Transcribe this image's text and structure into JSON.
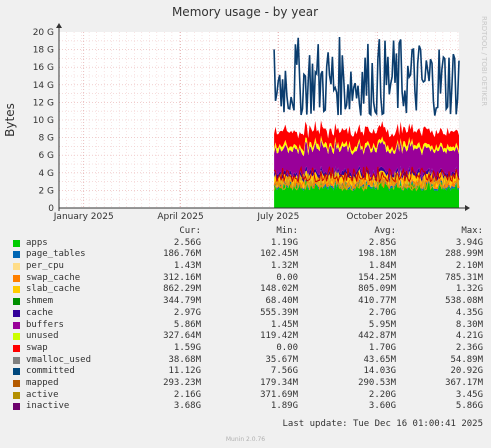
{
  "chart_data": {
    "type": "area",
    "title": "Memory usage - by year",
    "ylabel": "Bytes",
    "watermark": "RRDTOOL / TOBI OETIKER",
    "y_ticks": [
      "0",
      "2 G",
      "4 G",
      "6 G",
      "8 G",
      "10 G",
      "12 G",
      "14 G",
      "16 G",
      "18 G",
      "20 G"
    ],
    "ylim": [
      0,
      20
    ],
    "y_unit": "G",
    "x_ticks": [
      "January 2025",
      "April 2025",
      "July 2025",
      "October 2025"
    ],
    "x_tick_dates": [
      "2025-01-01",
      "2025-04-01",
      "2025-07-01",
      "2025-10-01"
    ],
    "x_range": [
      "2024-12-09",
      "2025-12-16"
    ],
    "data_start": "2025-06-27",
    "columns": [
      "Cur:",
      "Min:",
      "Avg:",
      "Max:"
    ],
    "series": [
      {
        "name": "apps",
        "color": "#00cc00",
        "cur": "2.56G",
        "min": "1.19G",
        "avg": "2.85G",
        "max": "3.94G",
        "stack_band": [
          1.9,
          3.1
        ]
      },
      {
        "name": "page_tables",
        "color": "#0066b3",
        "cur": "186.76M",
        "min": "102.45M",
        "avg": "198.18M",
        "max": "288.99M",
        "stack_band": [
          0.15,
          0.25
        ]
      },
      {
        "name": "per_cpu",
        "color": "#ffcc00",
        "cur": "1.43M",
        "min": "1.32M",
        "avg": "1.84M",
        "max": "2.10M",
        "stack_band": [
          0.001,
          0.002
        ]
      },
      {
        "name": "swap_cache",
        "color": "#ff8000",
        "cur": "312.16M",
        "min": "0.00",
        "avg": "154.25M",
        "max": "785.31M",
        "stack_band": [
          0.05,
          0.4
        ]
      },
      {
        "name": "slab_cache",
        "color": "#ffcc00",
        "cur": "862.29M",
        "min": "148.02M",
        "avg": "805.09M",
        "max": "1.32G",
        "stack_band": [
          0.6,
          1.0
        ]
      },
      {
        "name": "shmem",
        "color": "#330099",
        "cur": "344.79M",
        "min": "68.40M",
        "avg": "410.77M",
        "max": "538.08M",
        "stack_band": [
          0.3,
          0.5
        ]
      },
      {
        "name": "cache",
        "color": "#990099",
        "cur": "2.97G",
        "min": "555.39M",
        "avg": "2.70G",
        "max": "4.35G",
        "stack_band": [
          2.3,
          3.0
        ]
      },
      {
        "name": "buffers",
        "color": "#ccff00",
        "cur": "5.86M",
        "min": "1.45M",
        "avg": "5.95M",
        "max": "8.30M",
        "stack_band": [
          0.005,
          0.008
        ]
      },
      {
        "name": "unused",
        "color": "#ffff00",
        "cur": "327.64M",
        "min": "119.42M",
        "avg": "442.87M",
        "max": "4.21G",
        "stack_band": [
          0.3,
          0.6
        ]
      },
      {
        "name": "swap",
        "color": "#ff0000",
        "cur": "1.59G",
        "min": "0.00",
        "avg": "1.70G",
        "max": "2.36G",
        "stack_band": [
          1.4,
          1.9
        ]
      },
      {
        "name": "vmalloc_used",
        "color": "#808080",
        "cur": "38.68M",
        "min": "35.67M",
        "avg": "43.65M",
        "max": "54.89M"
      },
      {
        "name": "committed",
        "color": "#0b3d6e",
        "cur": "11.12G",
        "min": "7.56G",
        "avg": "14.03G",
        "max": "20.92G",
        "line": [
          10.5,
          19.5
        ]
      },
      {
        "name": "mapped",
        "color": "#ff7f00",
        "cur": "293.23M",
        "min": "179.34M",
        "avg": "290.53M",
        "max": "367.17M",
        "line": [
          2.2,
          3.6
        ]
      },
      {
        "name": "active",
        "color": "#d4a017",
        "cur": "2.16G",
        "min": "371.69M",
        "avg": "2.20G",
        "max": "3.45G",
        "line": [
          2.0,
          4.1
        ]
      },
      {
        "name": "inactive",
        "color": "#cc0000",
        "cur": "3.68G",
        "min": "1.89G",
        "avg": "3.60G",
        "max": "5.86G",
        "line": [
          3.0,
          4.7
        ]
      }
    ],
    "legend_swatch_colors": [
      "#00cc00",
      "#0066b3",
      "#ffdd88",
      "#ff8000",
      "#ffcc00",
      "#008f00",
      "#330099",
      "#990099",
      "#ccff00",
      "#ff0000",
      "#808080",
      "#00487d",
      "#b35a00",
      "#b38f00",
      "#6b006b"
    ]
  },
  "last_update": "Last update: Tue Dec 16 01:00:41 2025",
  "footer": "Munin 2.0.76"
}
